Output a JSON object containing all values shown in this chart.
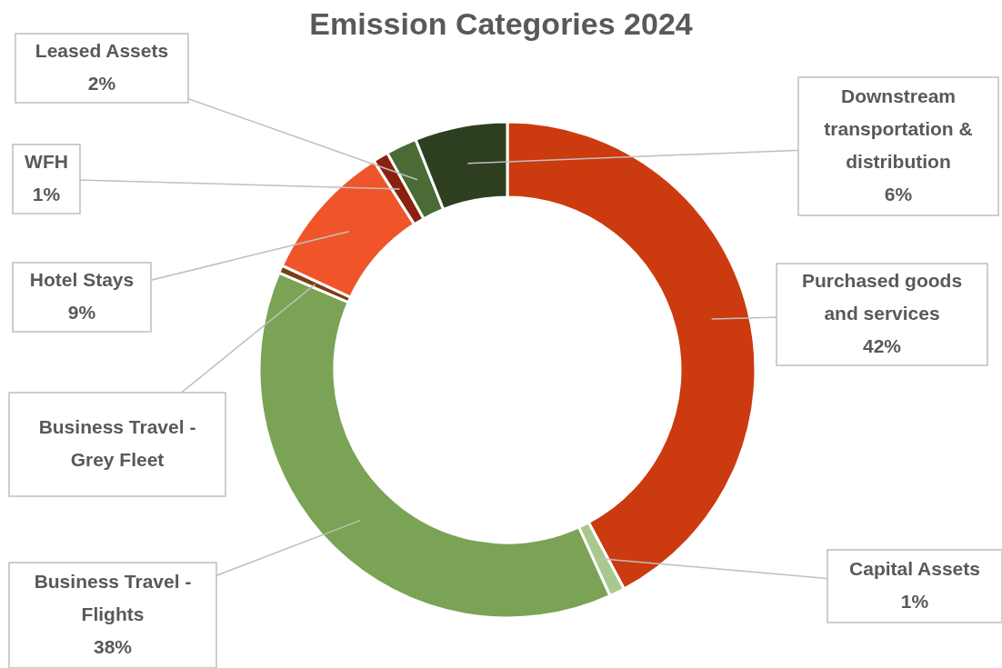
{
  "chart_data": {
    "type": "donut",
    "title": "Emission Categories 2024",
    "categories": [
      "Purchased goods and services",
      "Capital Assets",
      "Business Travel - Flights",
      "Business Travel - Grey Fleet",
      "Hotel Stays",
      "WFH",
      "Leased Assets",
      "Downstream transportation & distribution"
    ],
    "values": [
      42,
      1,
      38,
      0.5,
      9,
      1,
      2,
      6
    ],
    "value_labels": [
      "42%",
      "1%",
      "38%",
      null,
      "9%",
      "1%",
      "2%",
      "6%"
    ],
    "colors": [
      "#cc3a0f",
      "#a9c88e",
      "#7aa355",
      "#7a3e14",
      "#f0552a",
      "#8a2010",
      "#4a6b35",
      "#2e3f1f"
    ]
  }
}
